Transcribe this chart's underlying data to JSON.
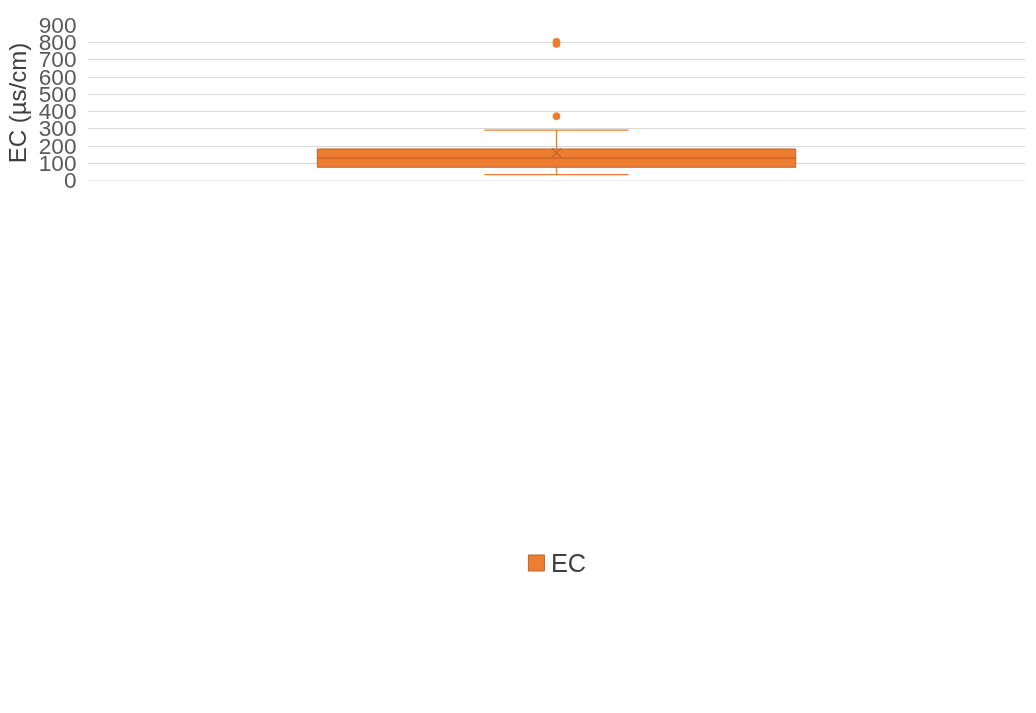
{
  "chart_data": {
    "type": "box",
    "ylabel": "EC (µs/cm)",
    "categories": [
      null
    ],
    "series": [
      {
        "name": "EC",
        "color": "#ed7d31",
        "boxes": [
          {
            "low": 34,
            "q1": 77,
            "median": 130,
            "q3": 183,
            "high": 293,
            "mean": 161,
            "outliers": [
              373,
              793,
              805
            ]
          }
        ]
      }
    ],
    "ylim": [
      0,
      900
    ],
    "yticks": [
      0,
      100,
      200,
      300,
      400,
      500,
      600,
      700,
      800,
      900
    ],
    "grid": "y",
    "legend": "bottom"
  }
}
